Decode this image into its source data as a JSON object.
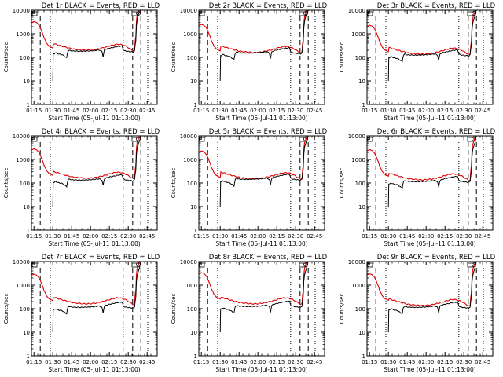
{
  "colors": {
    "events": "#000000",
    "lld": "#e00000",
    "axes": "#000000",
    "background": "#ffffff"
  },
  "chart_data": {
    "type": "line",
    "layout": "3x3 grid of small multiples",
    "y_scale": "log",
    "ylim": [
      1,
      10000
    ],
    "ylabel": "Counts/sec",
    "xlabel": "Start Time (05-Jul-11 01:13:00)",
    "x_unit": "minutes after 01:13:00",
    "xlim": [
      0,
      100
    ],
    "x_tick_values": [
      2,
      17,
      32,
      47,
      62,
      77,
      92
    ],
    "x_tick_labels": [
      "01:15",
      "01:30",
      "01:45",
      "02:00",
      "02:15",
      "02:30",
      "02:45"
    ],
    "y_tick_values": [
      1,
      10,
      100,
      1000,
      10000
    ],
    "y_tick_labels": [
      "1",
      "10",
      "100",
      "1000",
      "10000"
    ],
    "title_suffix": " BLACK = Events, RED = LLD",
    "legend": [
      {
        "name": "Events",
        "color": "BLACK"
      },
      {
        "name": "LLD",
        "color": "RED"
      }
    ],
    "dashed_vlines": [
      7,
      80.5,
      87
    ],
    "dotted_vlines": [
      15,
      73,
      92.5
    ],
    "panels": [
      {
        "detector": "Det 1r",
        "events_base": 190,
        "lld_base": 250,
        "events_offset": 0,
        "lld_start": 3300
      },
      {
        "detector": "Det 2r",
        "events_base": 160,
        "lld_base": 200,
        "events_offset": 0,
        "lld_start": 2500
      },
      {
        "detector": "Det 3r",
        "events_base": 130,
        "lld_base": 170,
        "events_offset": 0,
        "lld_start": 2300
      },
      {
        "detector": "Det 4r",
        "events_base": 140,
        "lld_base": 200,
        "events_offset": 0,
        "lld_start": 2800
      },
      {
        "detector": "Det 5r",
        "events_base": 150,
        "lld_base": 190,
        "events_offset": 0,
        "lld_start": 2300
      },
      {
        "detector": "Det 6r",
        "events_base": 120,
        "lld_base": 170,
        "events_offset": 0,
        "lld_start": 2600
      },
      {
        "detector": "Det 7r",
        "events_base": 120,
        "lld_base": 200,
        "events_offset": 0,
        "lld_start": 2900
      },
      {
        "detector": "Det 8r",
        "events_base": 130,
        "lld_base": 200,
        "events_offset": 0,
        "lld_start": 3400
      },
      {
        "detector": "Det 9r",
        "events_base": 120,
        "lld_base": 170,
        "events_offset": 0,
        "lld_start": 3000
      }
    ],
    "lld_profile": {
      "x": [
        0,
        2,
        4,
        6,
        8,
        10,
        12,
        14,
        17,
        20,
        24,
        28,
        32,
        36,
        40,
        44,
        48,
        52,
        56,
        60,
        64,
        68,
        72,
        76,
        78,
        80,
        81,
        82,
        83,
        84,
        86,
        88,
        90,
        92,
        94,
        96,
        98,
        100
      ],
      "rel": [
        null,
        null,
        null,
        null,
        null,
        null,
        null,
        null,
        1.55,
        1.4,
        1.2,
        1.05,
        0.92,
        0.86,
        0.82,
        0.8,
        0.82,
        0.88,
        0.98,
        1.12,
        1.3,
        1.45,
        1.38,
        1.12,
        0.95,
        0.82,
        0.75,
        0.8,
        3.0,
        25,
        48,
        56,
        null,
        null,
        null,
        null,
        null,
        null
      ],
      "start_curve_x": [
        0,
        2,
        4,
        6,
        8,
        10,
        12,
        14,
        17
      ],
      "start_curve_frac": [
        0.9,
        1.0,
        0.92,
        0.7,
        0.4,
        0.2,
        0.12,
        0.09,
        0.075
      ]
    },
    "events_profile": {
      "x": [
        17,
        18,
        19,
        20,
        21,
        22,
        24,
        26,
        28,
        29,
        30,
        31,
        32,
        34,
        36,
        38,
        40,
        42,
        44,
        46,
        48,
        50,
        52,
        54,
        56,
        57,
        58,
        59,
        60,
        62,
        64,
        66,
        68,
        70,
        72,
        73,
        74,
        76,
        78,
        80,
        81,
        82,
        83,
        84,
        86
      ],
      "rel": [
        0.2,
        0.75,
        0.82,
        0.8,
        0.75,
        0.72,
        0.7,
        0.6,
        0.5,
        0.95,
        1.05,
        1.02,
        0.98,
        0.97,
        0.96,
        0.95,
        0.95,
        0.96,
        0.97,
        0.98,
        1.0,
        1.02,
        1.05,
        1.08,
        0.95,
        0.55,
        1.05,
        1.15,
        1.2,
        1.28,
        1.35,
        1.42,
        1.5,
        1.55,
        1.6,
        1.1,
        1.0,
        0.95,
        0.92,
        0.9,
        0.88,
        1.0,
        2.5,
        20,
        45
      ]
    }
  }
}
